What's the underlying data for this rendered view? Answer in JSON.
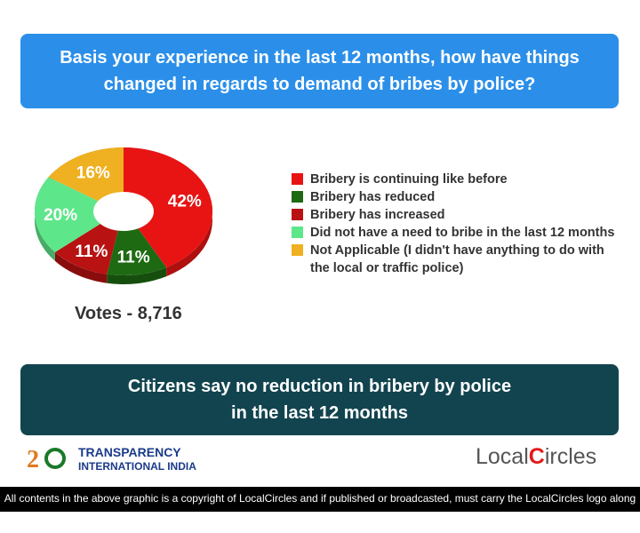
{
  "question": "Basis your experience in the last 12 months, how have things changed in regards to demand of bribes by police?",
  "conclusion": "Citizens say no reduction in bribery by police in the last 12 months",
  "votes": "Votes - 8,716",
  "chart_data": {
    "type": "pie",
    "style": "3d-donut",
    "categories": [
      "Bribery is continuing like before",
      "Bribery has reduced",
      "Bribery has increased",
      "Did not have a need to bribe in the last 12 months",
      "Not Applicable (I didn't have anything to do with the local or traffic police)"
    ],
    "values": [
      42,
      11,
      11,
      20,
      16
    ],
    "labels": [
      "42%",
      "11%",
      "11%",
      "20%",
      "16%"
    ],
    "colors": [
      "#e81414",
      "#1e6a12",
      "#b81212",
      "#5ee68a",
      "#efb021"
    ],
    "legend_placement": "right"
  },
  "logos": {
    "tii_line1": "TRANSPARENCY",
    "tii_line2": "INTERNATIONAL INDIA",
    "tii_badge": "20 YEARS",
    "lc_a": "Local",
    "lc_b": "C",
    "lc_c": "ircles"
  },
  "footer": "All contents in the above graphic is a copyright of LocalCircles and if published or broadcasted, must carry the LocalCircles logo along with it."
}
